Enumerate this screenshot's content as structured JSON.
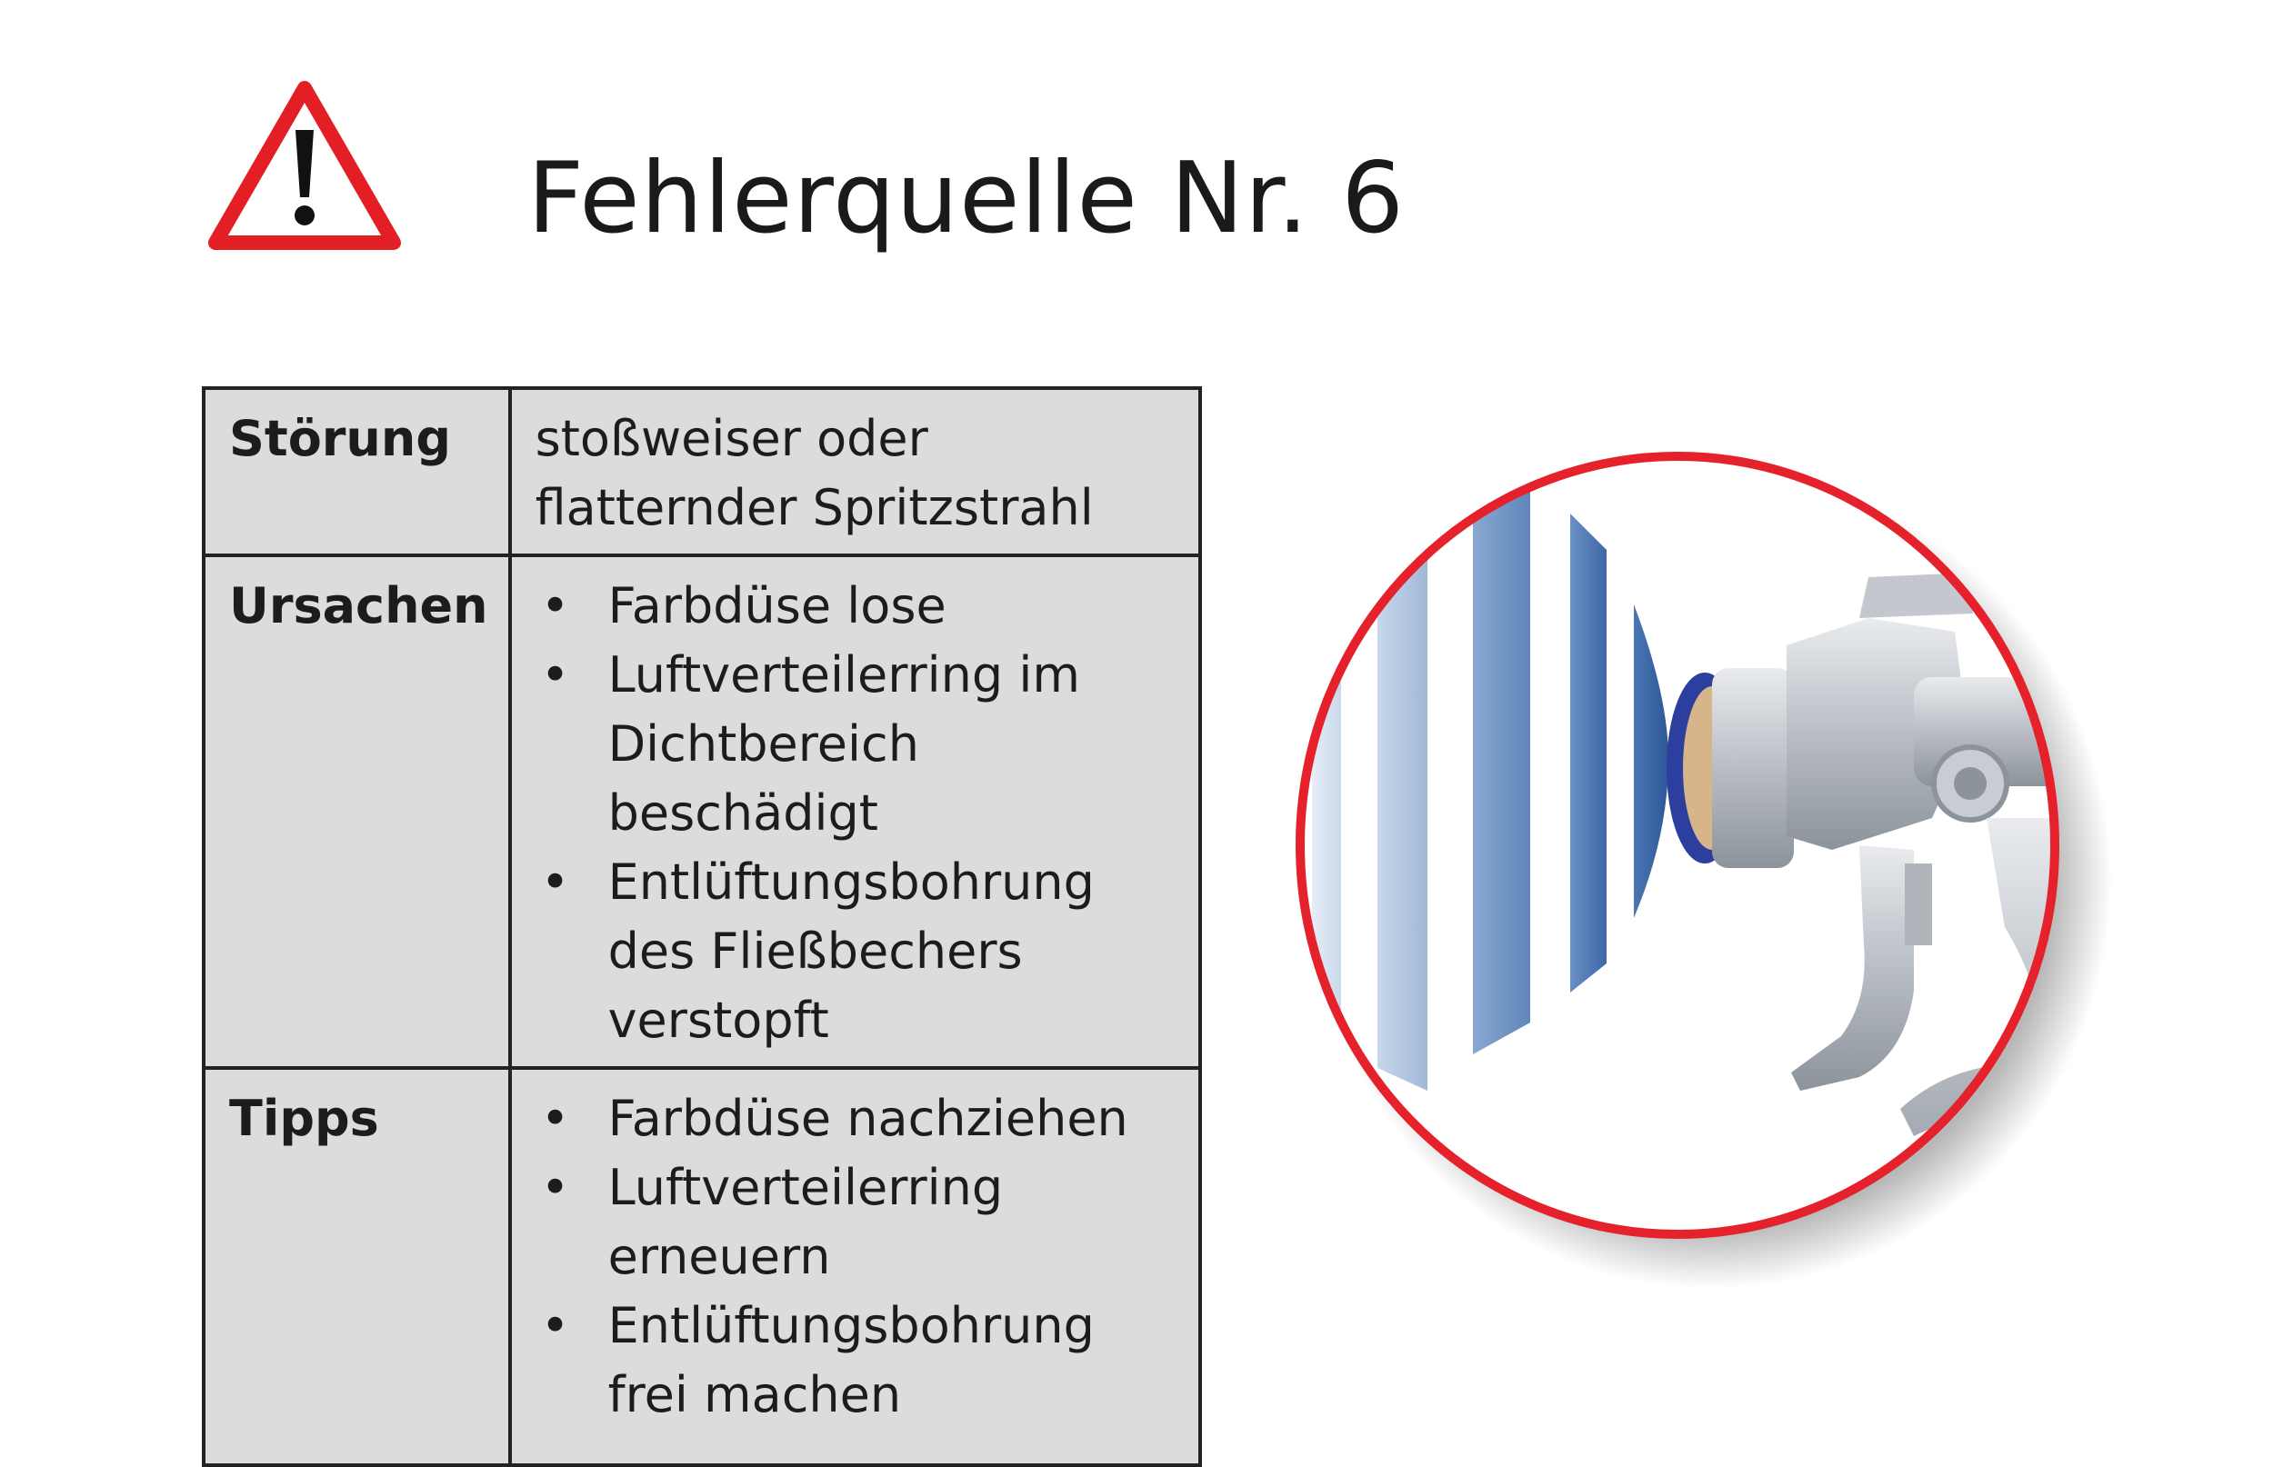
{
  "slide": {
    "title": "Fehlerquelle Nr. 6"
  },
  "icons": {
    "warning": "warning-triangle-icon",
    "illustration": "spray-gun-icon"
  },
  "colors": {
    "warning_red": "#e31e24",
    "circle_red": "#e5222b",
    "table_fill": "#dcdcdc",
    "spray_blue": "#3f6fb0"
  },
  "table": {
    "rows": [
      {
        "label": "Störung",
        "text": "stoßweiser oder flatternder Spritzstrahl"
      },
      {
        "label": "Ursachen",
        "items": [
          "Farbdüse lose",
          "Luftverteilerring im Dichtbereich beschädigt",
          "Entlüftungsbohrung des Fließbechers verstopft"
        ]
      },
      {
        "label": "Tipps",
        "items": [
          "Farbdüse nachziehen",
          "Luftverteilerring erneuern",
          "Entlüftungsbohrung frei machen"
        ]
      }
    ]
  }
}
